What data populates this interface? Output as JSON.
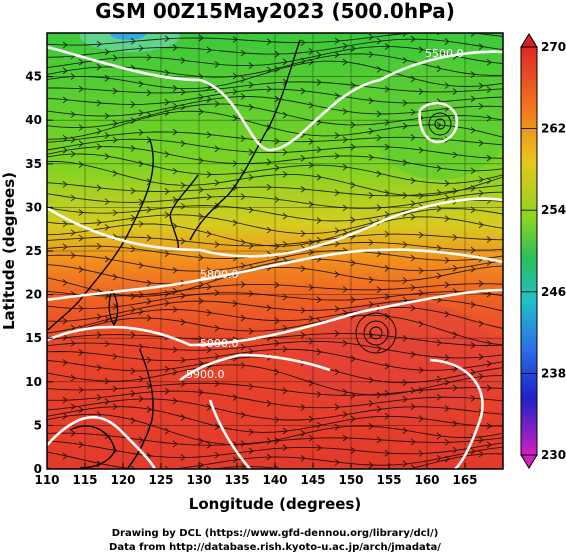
{
  "chart_data": {
    "type": "contour",
    "title": "GSM 00Z15May2023 (500.0hPa)",
    "xlabel": "Longitude (degrees)",
    "ylabel": "Latitude (degrees)",
    "xlim": [
      110,
      170
    ],
    "ylim": [
      0,
      50
    ],
    "x_ticks": [
      "110",
      "115",
      "120",
      "125",
      "130",
      "135",
      "140",
      "145",
      "150",
      "155",
      "160",
      "165"
    ],
    "y_ticks": [
      "0",
      "5",
      "10",
      "15",
      "20",
      "25",
      "30",
      "35",
      "40",
      "45"
    ],
    "grid": true,
    "colorbar": {
      "min": 230,
      "max": 270,
      "labels": [
        "270",
        "262",
        "254",
        "246",
        "238",
        "230"
      ],
      "placement": "right"
    },
    "contour_labels": [
      {
        "text": "5500.0",
        "lon": 167.5,
        "lat": 47.5
      },
      {
        "text": "5800.0",
        "lon": 131.0,
        "lat": 25.5
      },
      {
        "text": "5900.0",
        "lon": 138.0,
        "lat": 16.0
      },
      {
        "text": "5900.0",
        "lon": 133.0,
        "lat": 12.5
      }
    ],
    "colors": {
      "warm": "#e8402a",
      "orange": "#f28a22",
      "yellow_green": "#9ad21e",
      "green": "#3cc83c",
      "cyan": "#22b8d8",
      "blue": "#1a55e0",
      "magenta": "#d020c0",
      "contour": "#ffffff",
      "streamline": "#000000"
    }
  },
  "footer": {
    "line1": "Drawing by DCL (https://www.gfd-dennou.org/library/dcl/)",
    "line2": "Data from http://database.rish.kyoto-u.ac.jp/arch/jmadata/"
  }
}
